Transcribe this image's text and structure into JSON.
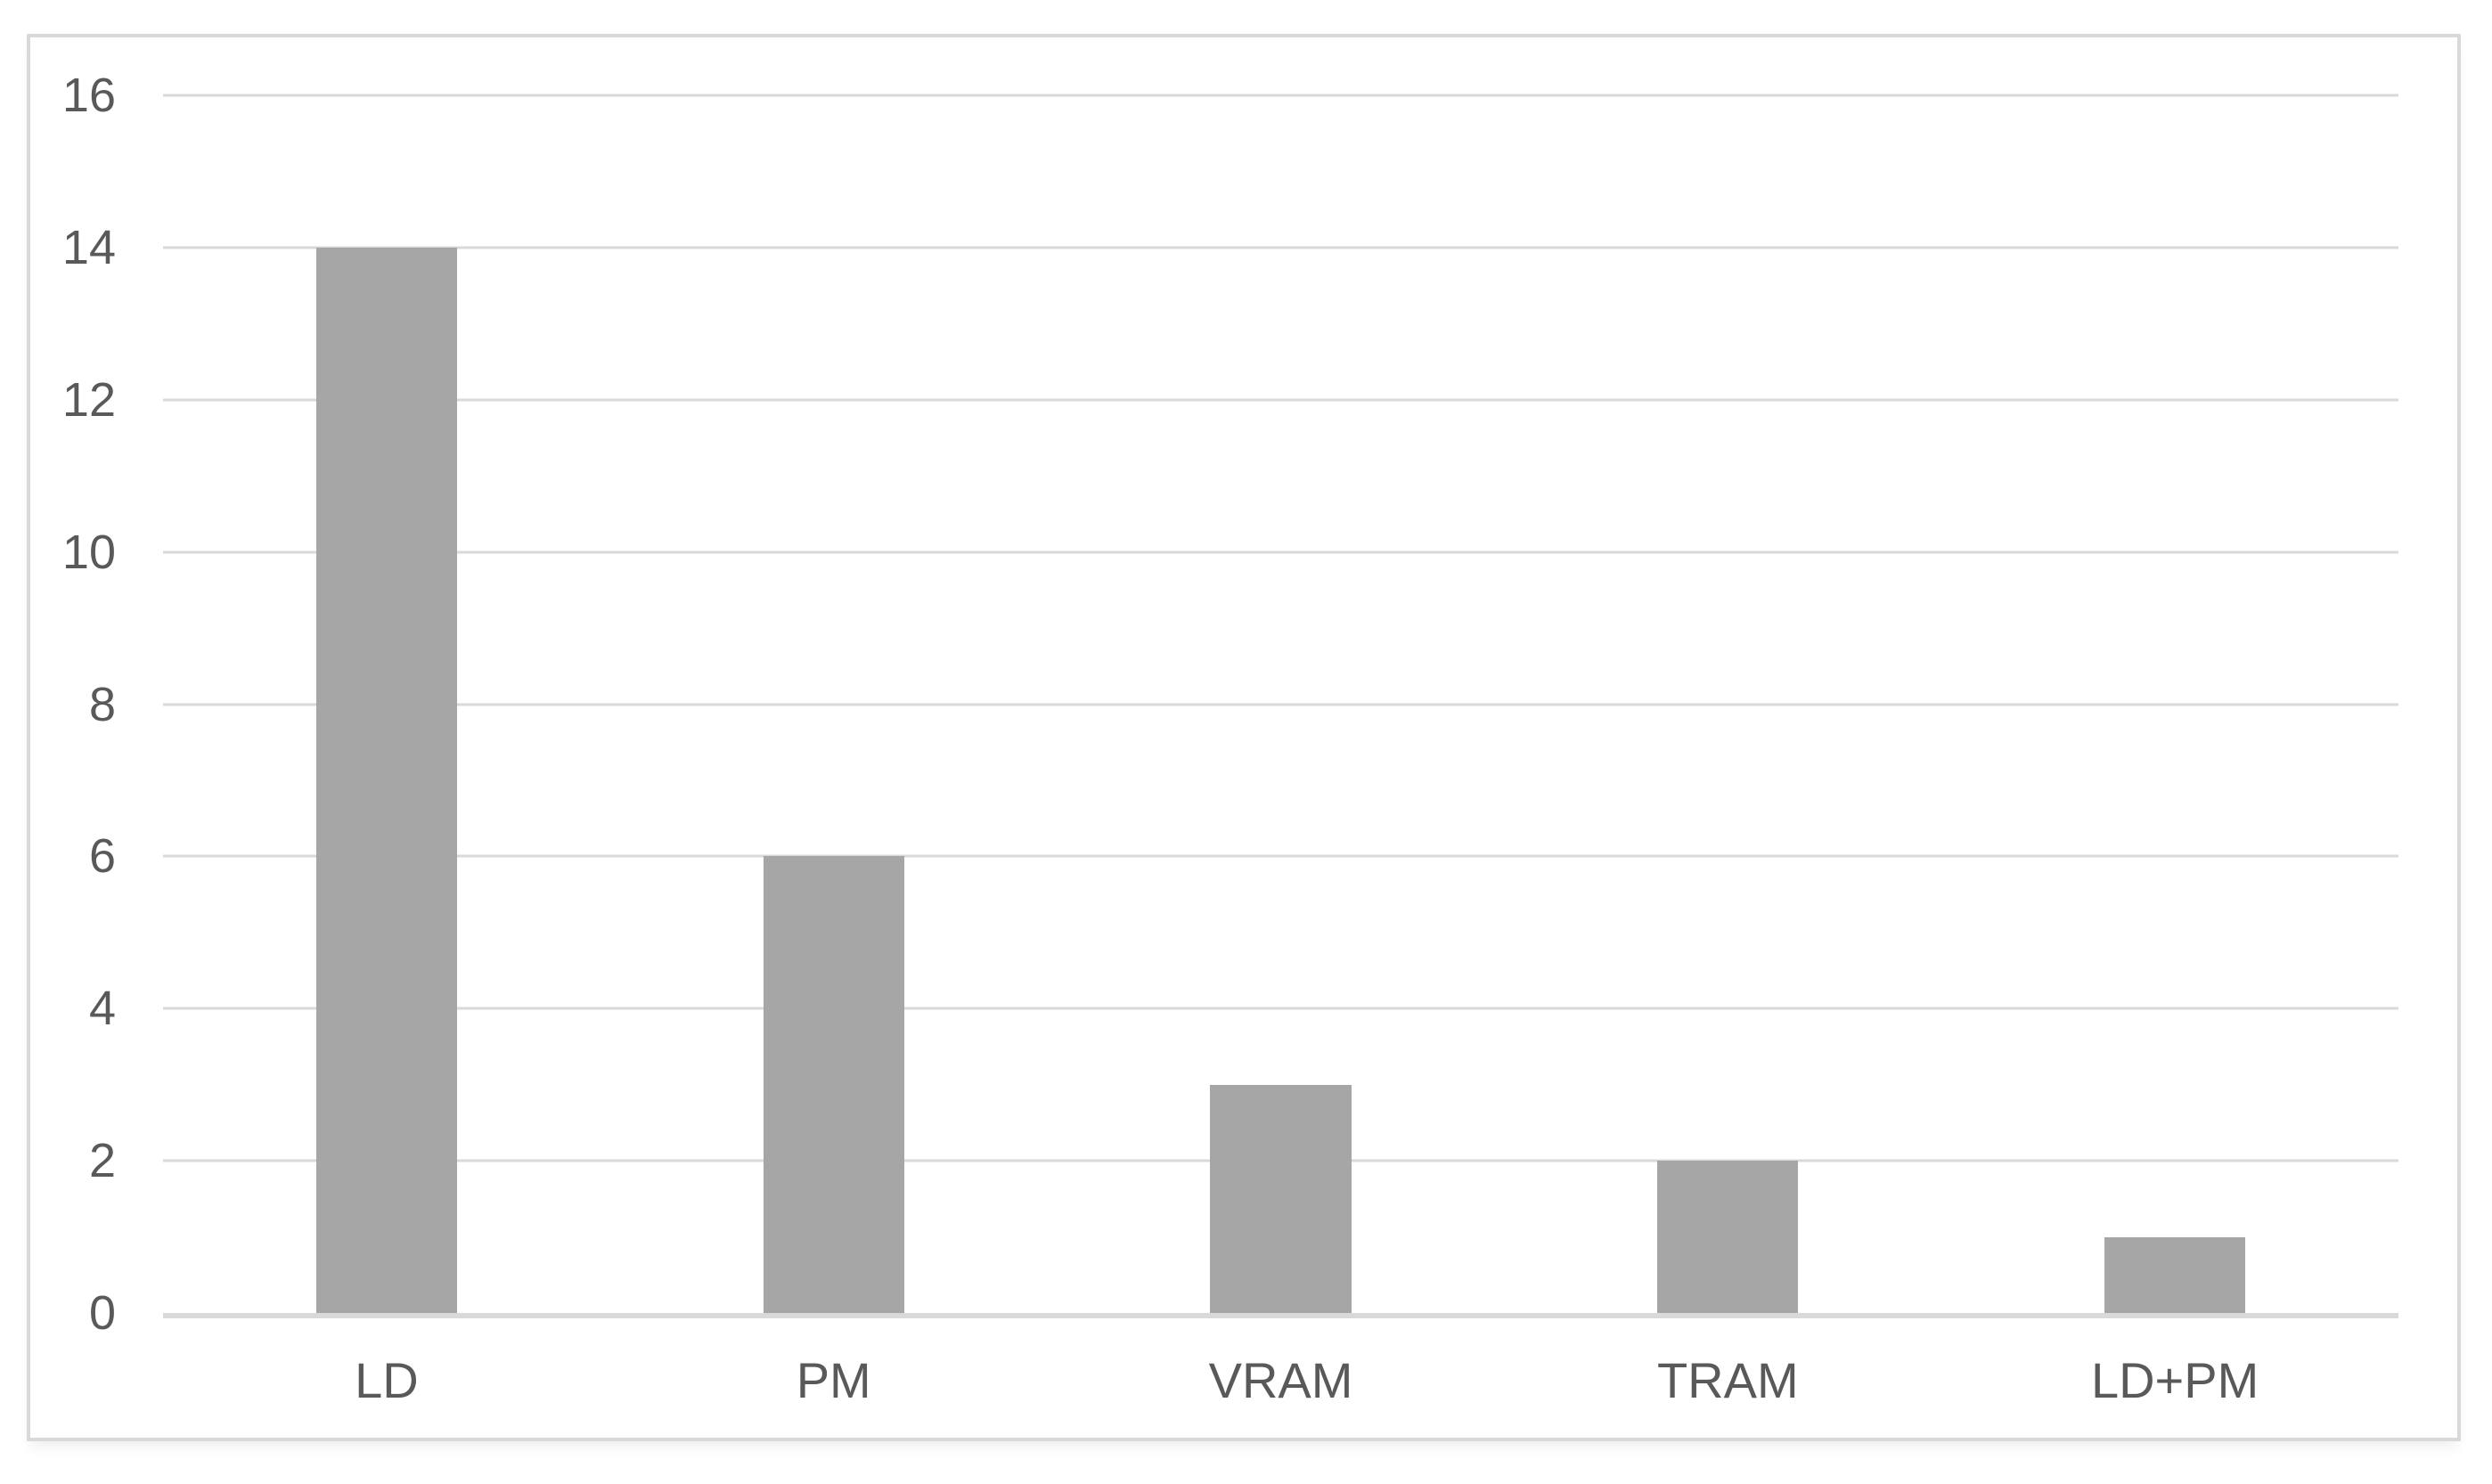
{
  "figure": {
    "background": "#ffffff",
    "border_color": "#d9d9d9"
  },
  "chart_data": {
    "type": "bar",
    "title": "",
    "xlabel": "",
    "ylabel": "",
    "categories": [
      "LD",
      "PM",
      "VRAM",
      "TRAM",
      "LD+PM"
    ],
    "values": [
      14,
      6,
      3,
      2,
      1
    ],
    "ylim": [
      0,
      16
    ],
    "yticks": [
      0,
      2,
      4,
      6,
      8,
      10,
      12,
      14,
      16
    ],
    "grid": true,
    "legend": false,
    "bar_color": "#a6a6a6",
    "gridline_color": "#d9d9d9",
    "axis_line_color": "#d9d9d9",
    "tick_label_color": "#595959"
  }
}
